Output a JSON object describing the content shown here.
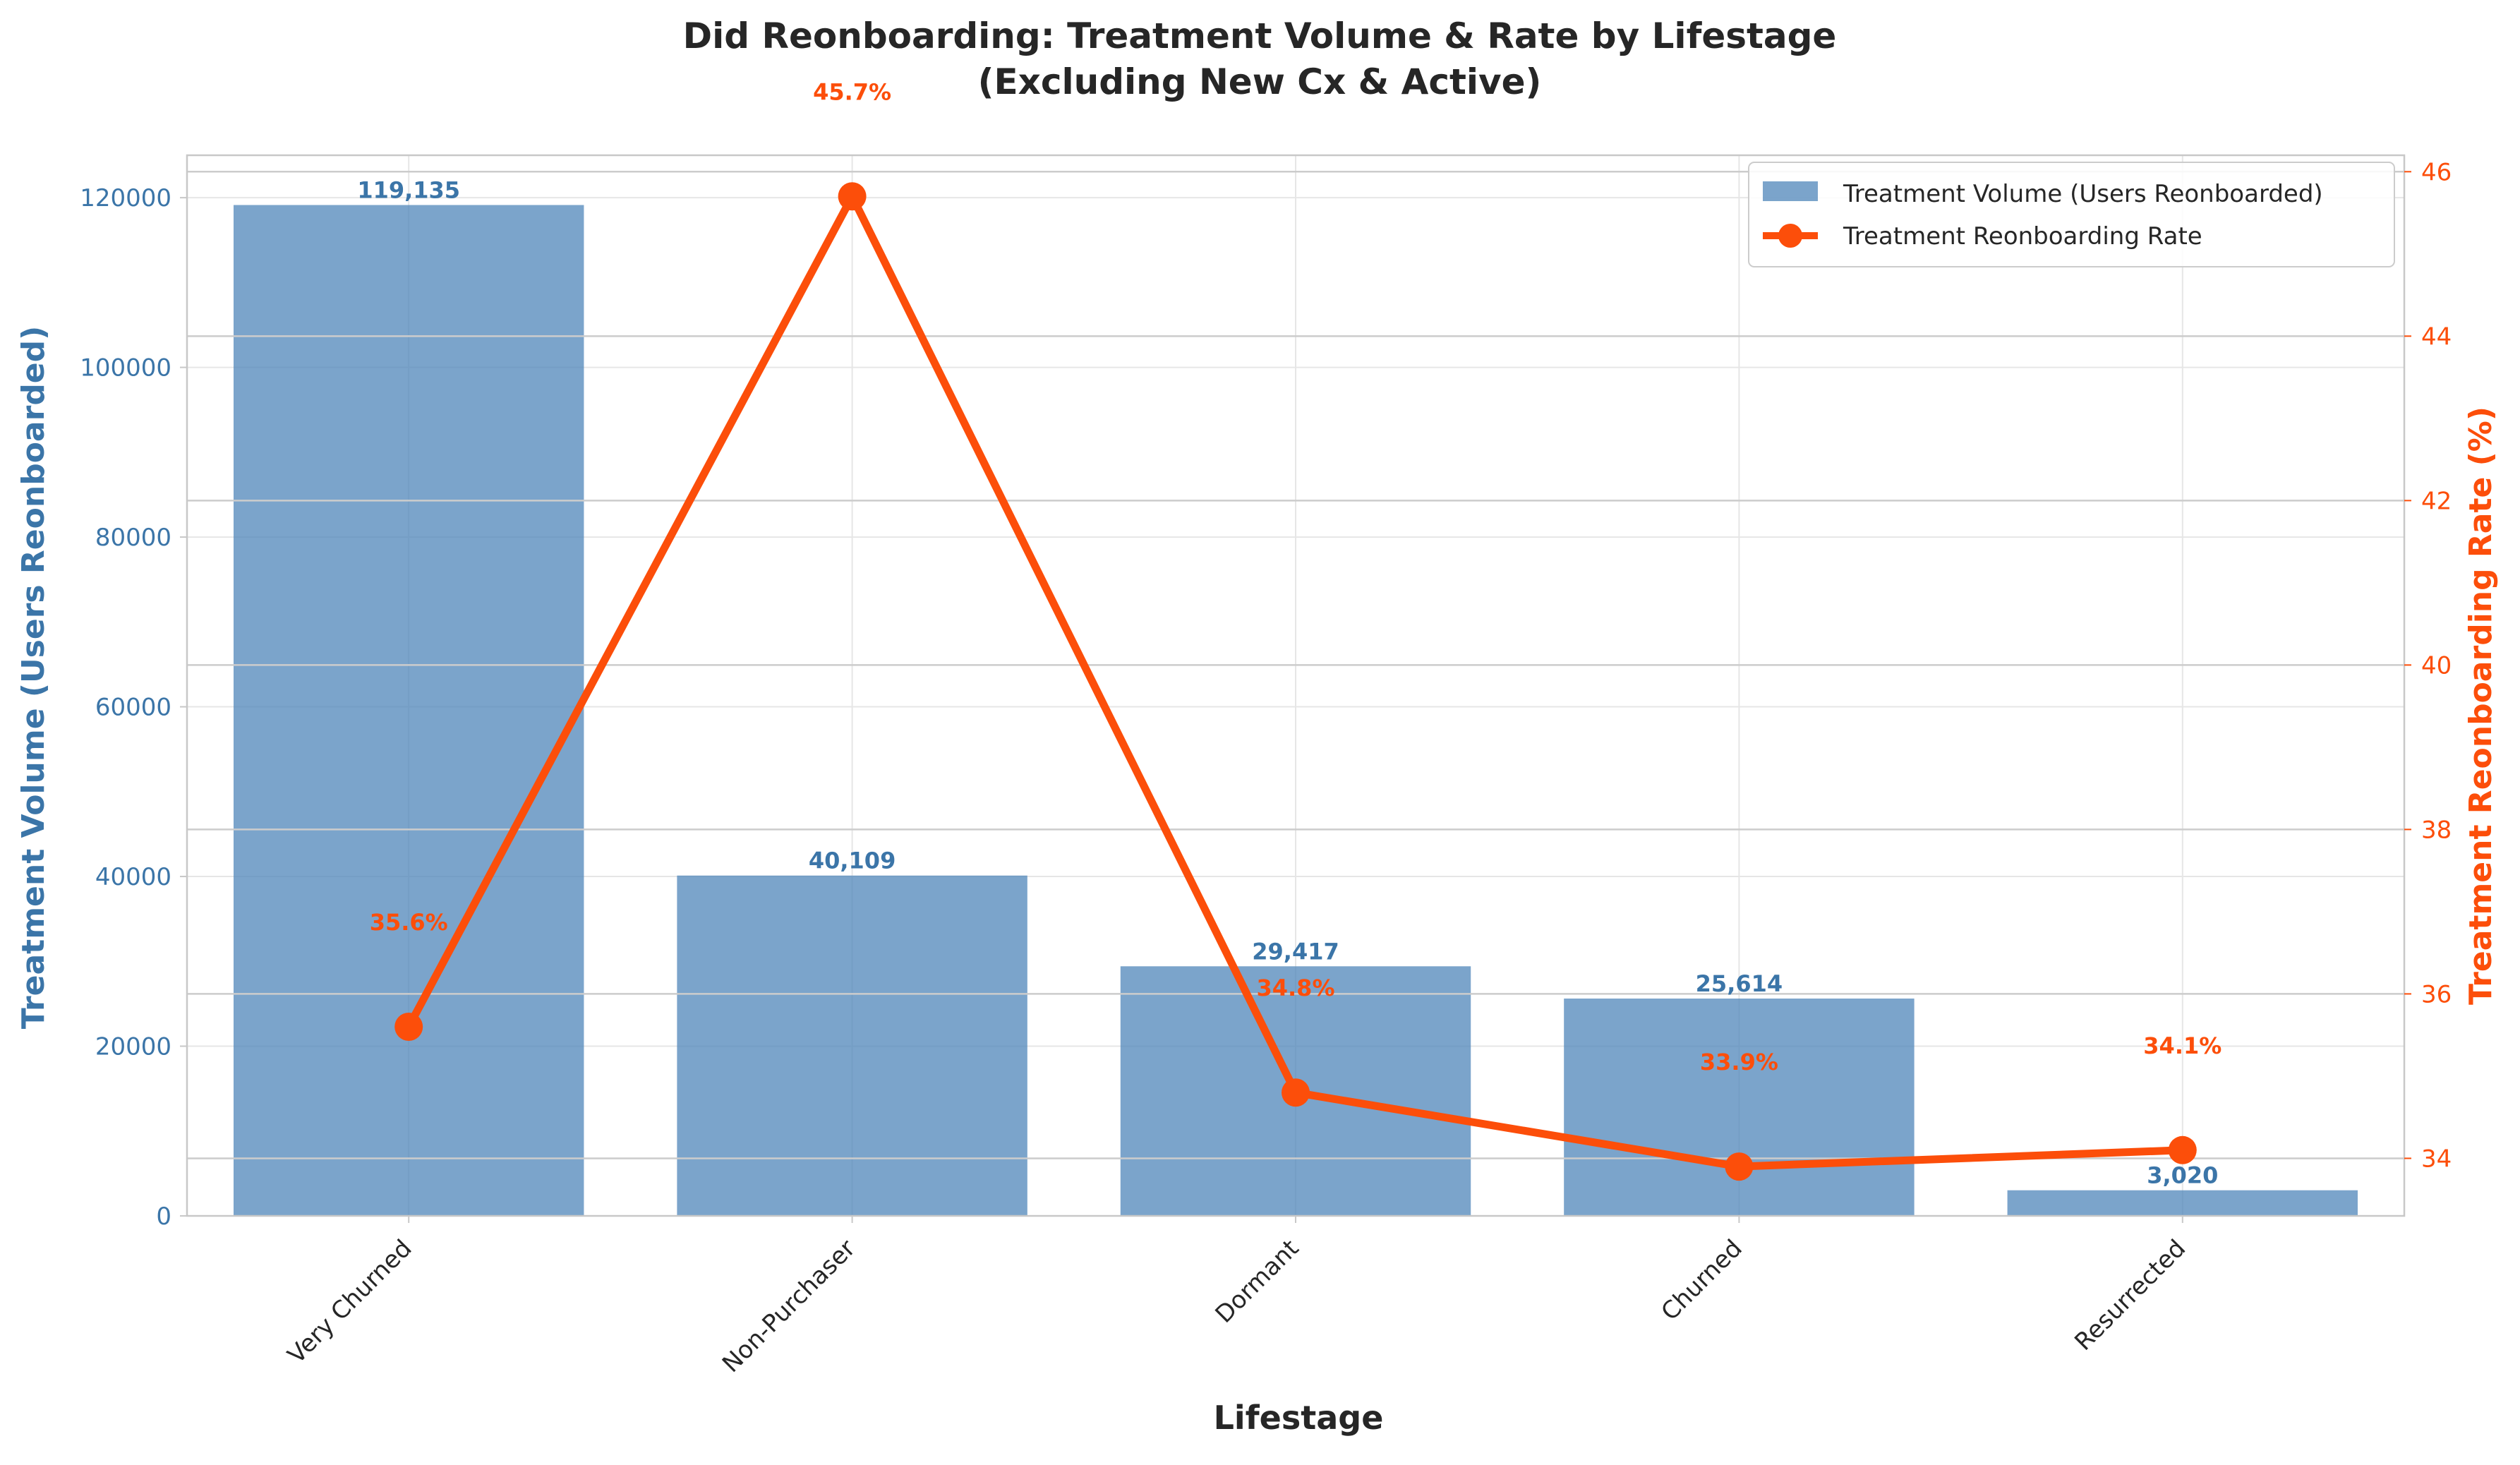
{
  "colors": {
    "bar": "#4f86b9",
    "line": "#fc4e0a",
    "left_axis": "#3b75a8",
    "right_axis": "#fc4e0a",
    "grid": "#e6e6e6",
    "right_grid": "#cccccc",
    "spine": "#c8c8c8",
    "title": "#262626"
  },
  "chart_data": {
    "type": "bar",
    "title": "Did Reonboarding: Treatment Volume & Rate by Lifestage",
    "subtitle": "(Excluding New Cx & Active)",
    "xlabel": "Lifestage",
    "ylabel": "Treatment Volume (Users Reonboarded)",
    "y2label": "Treatment Reonboarding Rate (%)",
    "categories": [
      "Very Churned",
      "Non-Purchaser",
      "Dormant",
      "Churned",
      "Resurrected"
    ],
    "series": [
      {
        "name": "Treatment Volume (Users Reonboarded)",
        "type": "bar",
        "axis": "left",
        "values": [
          119135,
          40109,
          29417,
          25614,
          3020
        ],
        "labels": [
          "119,135",
          "40,109",
          "29,417",
          "25,614",
          "3,020"
        ]
      },
      {
        "name": "Treatment Reonboarding Rate",
        "type": "line",
        "axis": "right",
        "values": [
          35.6,
          45.7,
          34.8,
          33.9,
          34.1
        ],
        "labels": [
          "35.6%",
          "45.7%",
          "34.8%",
          "33.9%",
          "34.1%"
        ]
      }
    ],
    "ylim": [
      0,
      125000
    ],
    "y_ticks": [
      0,
      20000,
      40000,
      60000,
      80000,
      100000,
      120000
    ],
    "y2lim": [
      33.3,
      46.2
    ],
    "y2_ticks": [
      34,
      36,
      38,
      40,
      42,
      44,
      46
    ],
    "grid": true,
    "legend_position": "top-right"
  }
}
